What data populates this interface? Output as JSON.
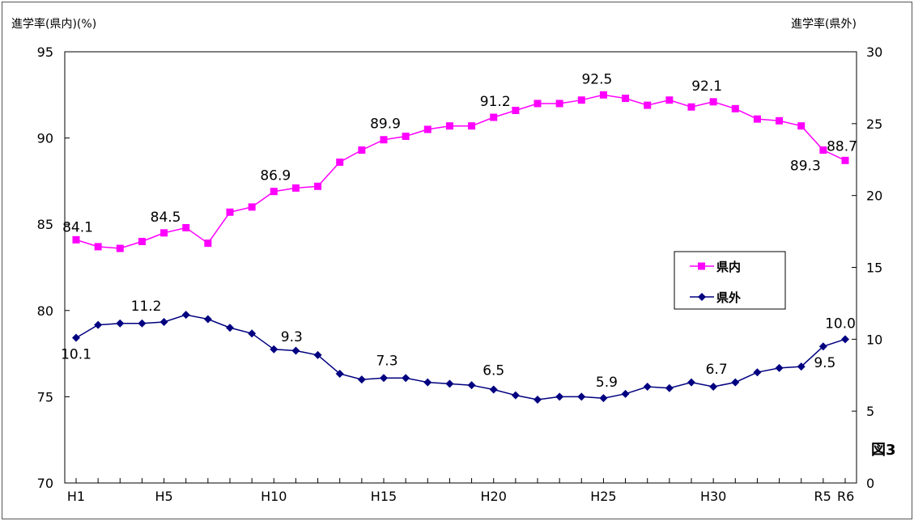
{
  "chart_data": {
    "type": "line",
    "figure_label": "図3",
    "ylabel_left": "進学率(県内)(%)",
    "ylabel_right": "進学率(県外)",
    "ylim_left": [
      70,
      95
    ],
    "ylim_right": [
      0,
      30
    ],
    "yticks_left": [
      70,
      75,
      80,
      85,
      90,
      95
    ],
    "yticks_right": [
      0,
      5,
      10,
      15,
      20,
      25,
      30
    ],
    "x": [
      "H1",
      "H2",
      "H3",
      "H4",
      "H5",
      "H6",
      "H7",
      "H8",
      "H9",
      "H10",
      "H11",
      "H12",
      "H13",
      "H14",
      "H15",
      "H16",
      "H17",
      "H18",
      "H19",
      "H20",
      "H21",
      "H22",
      "H23",
      "H24",
      "H25",
      "H26",
      "H27",
      "H28",
      "H29",
      "H30",
      "R1",
      "R2",
      "R3",
      "R4",
      "R5",
      "R6"
    ],
    "xtick_labels": [
      {
        "index": 0,
        "label": "H1"
      },
      {
        "index": 4,
        "label": "H5"
      },
      {
        "index": 9,
        "label": "H10"
      },
      {
        "index": 14,
        "label": "H15"
      },
      {
        "index": 19,
        "label": "H20"
      },
      {
        "index": 24,
        "label": "H25"
      },
      {
        "index": 29,
        "label": "H30"
      },
      {
        "index": 34,
        "label": "R5"
      },
      {
        "index": 35,
        "label": "R6"
      }
    ],
    "legend_position": "right",
    "grid": false,
    "series": [
      {
        "name": "県内",
        "axis": "left",
        "color": "#ff00ff",
        "marker": "square",
        "values": [
          84.1,
          83.7,
          83.6,
          84.0,
          84.5,
          84.8,
          83.9,
          85.7,
          86.0,
          86.9,
          87.1,
          87.2,
          88.6,
          89.3,
          89.9,
          90.1,
          90.5,
          90.7,
          90.7,
          91.2,
          91.6,
          92.0,
          92.0,
          92.2,
          92.5,
          92.3,
          91.9,
          92.2,
          91.8,
          92.1,
          91.7,
          91.1,
          91.0,
          90.7,
          89.3,
          88.7
        ],
        "data_labels": [
          {
            "index": 0,
            "text": "84.1"
          },
          {
            "index": 4,
            "text": "84.5"
          },
          {
            "index": 9,
            "text": "86.9"
          },
          {
            "index": 14,
            "text": "89.9"
          },
          {
            "index": 19,
            "text": "91.2"
          },
          {
            "index": 24,
            "text": "92.5"
          },
          {
            "index": 29,
            "text": "92.1"
          },
          {
            "index": 34,
            "text": "89.3"
          },
          {
            "index": 35,
            "text": "88.7"
          }
        ]
      },
      {
        "name": "県外",
        "axis": "right",
        "color": "#000080",
        "marker": "diamond",
        "values": [
          10.1,
          11.0,
          11.1,
          11.1,
          11.2,
          11.7,
          11.4,
          10.8,
          10.4,
          9.3,
          9.2,
          8.9,
          7.6,
          7.2,
          7.3,
          7.3,
          7.0,
          6.9,
          6.8,
          6.5,
          6.1,
          5.8,
          6.0,
          6.0,
          5.9,
          6.2,
          6.7,
          6.6,
          7.0,
          6.7,
          7.0,
          7.7,
          8.0,
          8.1,
          9.5,
          10.0
        ],
        "data_labels": [
          {
            "index": 0,
            "text": "10.1"
          },
          {
            "index": 4,
            "text": "11.2"
          },
          {
            "index": 9,
            "text": "9.3"
          },
          {
            "index": 14,
            "text": "7.3"
          },
          {
            "index": 19,
            "text": "6.5"
          },
          {
            "index": 24,
            "text": "5.9"
          },
          {
            "index": 29,
            "text": "6.7"
          },
          {
            "index": 34,
            "text": "9.5"
          },
          {
            "index": 35,
            "text": "10.0"
          }
        ]
      }
    ]
  }
}
